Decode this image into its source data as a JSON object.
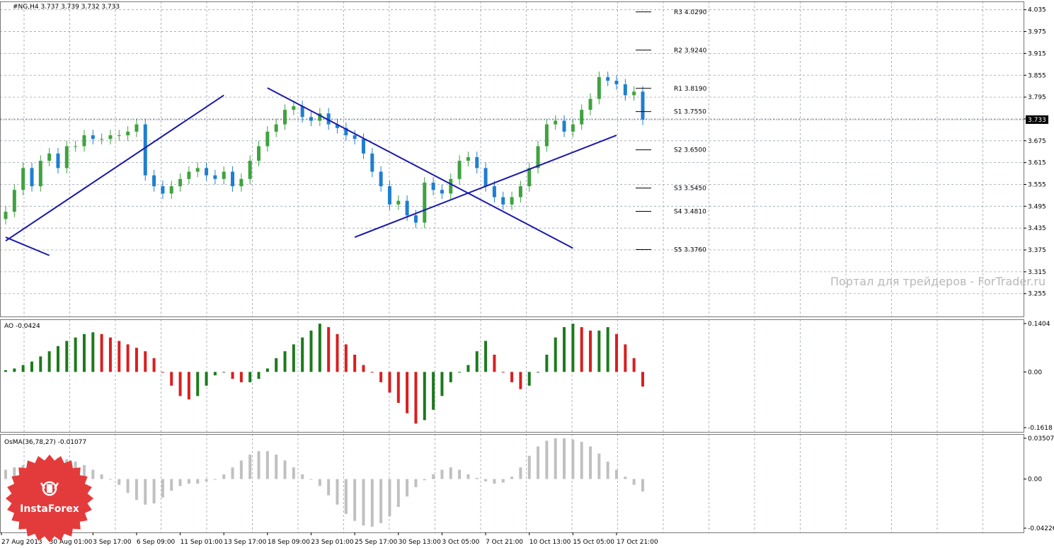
{
  "header": {
    "symbol_text": "#NG,H4  3.737 3.739 3.732 3.733"
  },
  "ao_label": "AO -0.0424",
  "osma_label": "OsMA(36,78,27) -0.01077",
  "watermark": "Портал для трейдеров - ForTrader.ru",
  "logo": {
    "text": "InstaForex",
    "icon": "bull-head-icon",
    "color": "#e33b3b"
  },
  "price_tag": "3.733",
  "colors": {
    "bull": "#3fa33f",
    "bear": "#1f7fd0",
    "line": "#1a1aa8",
    "ao_up": "#1c7a1c",
    "ao_down": "#d91f1f",
    "osma": "#c0c0c0",
    "grid": "#9aa3b0"
  },
  "chart_data": [
    {
      "type": "candlestick",
      "title": "#NG,H4  3.737 3.739 3.732 3.733",
      "ylim": [
        3.2,
        4.05
      ],
      "y_ticks": [
        "4.035",
        "3.975",
        "3.915",
        "3.855",
        "3.795",
        "3.735",
        "3.675",
        "3.615",
        "3.555",
        "3.495",
        "3.435",
        "3.375",
        "3.315",
        "3.255"
      ],
      "x_ticks": [
        "27 Aug 2013",
        "30 Aug 01:00",
        "3 Sep 17:00",
        "6 Sep 09:00",
        "11 Sep 01:00",
        "13 Sep 17:00",
        "18 Sep 09:00",
        "23 Sep 01:00",
        "25 Sep 17:00",
        "30 Sep 13:00",
        "3 Oct 05:00",
        "7 Oct 21:00",
        "10 Oct 13:00",
        "15 Oct 05:00",
        "17 Oct 21:00"
      ],
      "closes": [
        3.48,
        3.54,
        3.6,
        3.55,
        3.62,
        3.64,
        3.6,
        3.66,
        3.66,
        3.69,
        3.68,
        3.68,
        3.69,
        3.69,
        3.7,
        3.72,
        3.58,
        3.55,
        3.53,
        3.55,
        3.57,
        3.59,
        3.6,
        3.58,
        3.57,
        3.59,
        3.55,
        3.57,
        3.62,
        3.66,
        3.7,
        3.72,
        3.76,
        3.77,
        3.74,
        3.73,
        3.75,
        3.72,
        3.71,
        3.69,
        3.68,
        3.64,
        3.59,
        3.55,
        3.5,
        3.51,
        3.47,
        3.45,
        3.56,
        3.54,
        3.53,
        3.57,
        3.62,
        3.63,
        3.6,
        3.55,
        3.52,
        3.5,
        3.52,
        3.55,
        3.6,
        3.66,
        3.72,
        3.73,
        3.7,
        3.72,
        3.76,
        3.79,
        3.85,
        3.84,
        3.83,
        3.8,
        3.81,
        3.733
      ],
      "close_label": "3.733",
      "pivots": [
        {
          "label": "R3",
          "value": "4.0290"
        },
        {
          "label": "R2",
          "value": "3.9240"
        },
        {
          "label": "R1",
          "value": "3.8190"
        },
        {
          "label": "S1",
          "value": "3.7550"
        },
        {
          "label": "S2",
          "value": "3.6500"
        },
        {
          "label": "S3",
          "value": "3.5450"
        },
        {
          "label": "S4",
          "value": "3.4810"
        },
        {
          "label": "S5",
          "value": "3.3760"
        }
      ],
      "trendlines": [
        {
          "from": [
            "27 Aug 2013",
            3.4
          ],
          "to": [
            "13 Sep 17:00",
            3.8
          ]
        },
        {
          "from": [
            "18 Sep 09:00",
            3.82
          ],
          "to": [
            "15 Oct 05:00",
            3.38
          ]
        },
        {
          "from": [
            "25 Sep 17:00",
            3.41
          ],
          "to": [
            "17 Oct 21:00",
            3.69
          ]
        },
        {
          "from": [
            "27 Aug 2013",
            3.41
          ],
          "to": [
            "30 Aug 01:00",
            3.36
          ]
        }
      ]
    },
    {
      "type": "bar",
      "title": "AO -0.0424",
      "ylim": [
        -0.1618,
        0.1404
      ],
      "y_ticks": [
        "0.1404",
        "0.00",
        "-0.1618"
      ],
      "values": [
        0.005,
        0.01,
        0.02,
        0.03,
        0.045,
        0.06,
        0.075,
        0.09,
        0.1,
        0.11,
        0.115,
        0.11,
        0.1,
        0.09,
        0.08,
        0.07,
        0.06,
        0.04,
        0.0,
        -0.04,
        -0.07,
        -0.08,
        -0.07,
        -0.04,
        -0.01,
        0.0,
        -0.02,
        -0.03,
        -0.03,
        -0.02,
        0.01,
        0.04,
        0.06,
        0.08,
        0.1,
        0.12,
        0.14,
        0.13,
        0.11,
        0.08,
        0.05,
        0.02,
        0.0,
        -0.03,
        -0.06,
        -0.09,
        -0.12,
        -0.15,
        -0.14,
        -0.11,
        -0.07,
        -0.03,
        0.0,
        0.02,
        0.06,
        0.09,
        0.05,
        0.0,
        -0.03,
        -0.05,
        -0.04,
        0.0,
        0.05,
        0.1,
        0.13,
        0.14,
        0.13,
        0.12,
        0.12,
        0.13,
        0.11,
        0.08,
        0.04,
        -0.0424
      ]
    },
    {
      "type": "bar",
      "title": "OsMA(36,78,27) -0.01077",
      "ylim": [
        -0.04226,
        0.03507
      ],
      "y_ticks": [
        "0.03507",
        "0.00",
        "-0.04226"
      ],
      "values": [
        0.008,
        0.01,
        0.012,
        0.014,
        0.016,
        0.017,
        0.018,
        0.017,
        0.015,
        0.012,
        0.008,
        0.004,
        0.0,
        -0.005,
        -0.012,
        -0.018,
        -0.022,
        -0.021,
        -0.016,
        -0.01,
        -0.006,
        -0.004,
        -0.004,
        -0.002,
        0.0,
        0.004,
        0.01,
        0.016,
        0.021,
        0.024,
        0.024,
        0.021,
        0.016,
        0.01,
        0.004,
        0.0,
        -0.006,
        -0.014,
        -0.022,
        -0.03,
        -0.036,
        -0.04,
        -0.041,
        -0.038,
        -0.032,
        -0.024,
        -0.015,
        -0.007,
        -0.001,
        0.004,
        0.008,
        0.01,
        0.008,
        0.004,
        0.001,
        -0.002,
        -0.004,
        -0.003,
        0.002,
        0.01,
        0.02,
        0.028,
        0.033,
        0.035,
        0.035,
        0.034,
        0.032,
        0.028,
        0.022,
        0.015,
        0.008,
        0.002,
        -0.005,
        -0.01077
      ]
    }
  ]
}
